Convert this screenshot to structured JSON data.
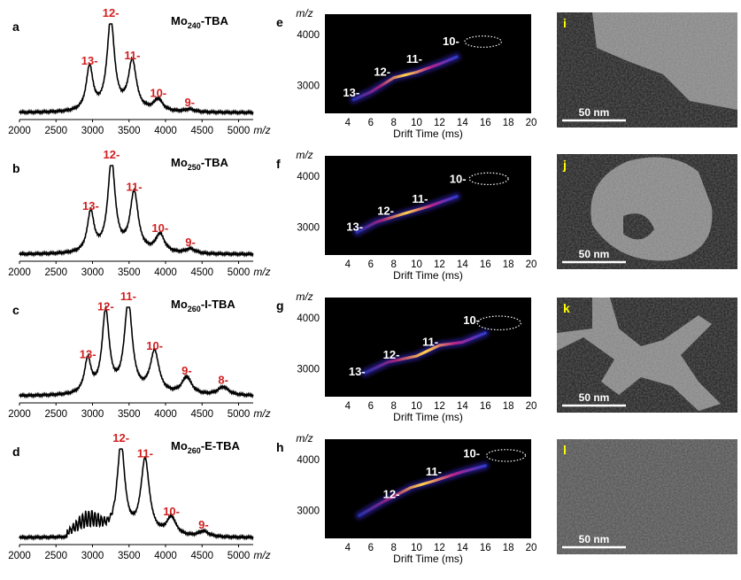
{
  "chart_data": {
    "ms_spectra": [
      {
        "type": "line",
        "panel_label": "a",
        "sample_label": {
          "prefix": "Mo",
          "subscript": "240",
          "suffix": "-TBA"
        },
        "x_ticks": [
          "2000",
          "2500",
          "3000",
          "3500",
          "4000",
          "4500",
          "5000"
        ],
        "x_unit": "m/z",
        "xlim": [
          2000,
          5200
        ],
        "peaks": [
          {
            "label": "13-",
            "x": 2960,
            "rel_intensity": 0.48
          },
          {
            "label": "12-",
            "x": 3250,
            "rel_intensity": 1.0
          },
          {
            "label": "11-",
            "x": 3545,
            "rel_intensity": 0.54
          },
          {
            "label": "10-",
            "x": 3900,
            "rel_intensity": 0.13
          },
          {
            "label": "9-",
            "x": 4330,
            "rel_intensity": 0.03
          }
        ]
      },
      {
        "type": "line",
        "panel_label": "b",
        "sample_label": {
          "prefix": "Mo",
          "subscript": "250",
          "suffix": "-TBA"
        },
        "x_ticks": [
          "2000",
          "2500",
          "3000",
          "3500",
          "4000",
          "4500",
          "5000"
        ],
        "x_unit": "m/z",
        "xlim": [
          2000,
          5200
        ],
        "peaks": [
          {
            "label": "13-",
            "x": 2975,
            "rel_intensity": 0.44
          },
          {
            "label": "12-",
            "x": 3260,
            "rel_intensity": 1.0
          },
          {
            "label": "11-",
            "x": 3570,
            "rel_intensity": 0.65
          },
          {
            "label": "10-",
            "x": 3925,
            "rel_intensity": 0.2
          },
          {
            "label": "9-",
            "x": 4340,
            "rel_intensity": 0.05
          }
        ]
      },
      {
        "type": "line",
        "panel_label": "c",
        "sample_label": {
          "prefix": "Mo",
          "subscript": "260",
          "suffix": "-I-TBA"
        },
        "x_ticks": [
          "2000",
          "2500",
          "3000",
          "3500",
          "4000",
          "4500",
          "5000"
        ],
        "x_unit": "m/z",
        "xlim": [
          2000,
          5200
        ],
        "peaks": [
          {
            "label": "13-",
            "x": 2935,
            "rel_intensity": 0.37
          },
          {
            "label": "12-",
            "x": 3180,
            "rel_intensity": 0.89
          },
          {
            "label": "11-",
            "x": 3490,
            "rel_intensity": 1.0
          },
          {
            "label": "10-",
            "x": 3850,
            "rel_intensity": 0.46
          },
          {
            "label": "9-",
            "x": 4290,
            "rel_intensity": 0.19
          },
          {
            "label": "8-",
            "x": 4790,
            "rel_intensity": 0.09
          }
        ]
      },
      {
        "type": "line",
        "panel_label": "d",
        "sample_label": {
          "prefix": "Mo",
          "subscript": "260",
          "suffix": "-E-TBA"
        },
        "x_ticks": [
          "2000",
          "2500",
          "3000",
          "3500",
          "4000",
          "4500",
          "5000"
        ],
        "x_unit": "m/z",
        "xlim": [
          2000,
          5200
        ],
        "peaks": [
          {
            "label": "12-",
            "x": 3390,
            "rel_intensity": 1.0
          },
          {
            "label": "11-",
            "x": 3720,
            "rel_intensity": 0.83
          },
          {
            "label": "10-",
            "x": 4080,
            "rel_intensity": 0.2
          },
          {
            "label": "9-",
            "x": 4520,
            "rel_intensity": 0.06
          }
        ],
        "broad_shoulder": [
          2600,
          3300
        ]
      }
    ],
    "drift_plots": [
      {
        "type": "heatmap",
        "panel_label": "e",
        "xlabel": "Drift Time (ms)",
        "ylabel": "m/z",
        "x_ticks": [
          "4",
          "6",
          "8",
          "10",
          "12",
          "14",
          "16",
          "18",
          "20"
        ],
        "y_ticks": [
          "3000",
          "4000"
        ],
        "xlim": [
          2,
          20
        ],
        "ylim": [
          2450,
          4400
        ],
        "trend": [
          [
            4.5,
            2720
          ],
          [
            6,
            2870
          ],
          [
            8,
            3150
          ],
          [
            10,
            3260
          ],
          [
            12,
            3420
          ],
          [
            13.5,
            3560
          ]
        ],
        "labels": [
          {
            "text": "13-",
            "x": 4.3,
            "y": 2780
          },
          {
            "text": "12-",
            "x": 7.0,
            "y": 3190
          },
          {
            "text": "11-",
            "x": 9.8,
            "y": 3440
          },
          {
            "text": "10-",
            "x": 13.0,
            "y": 3790
          }
        ],
        "ellipse": {
          "cx": 15.8,
          "cy": 3860,
          "rx": 1.6,
          "ry": 110
        }
      },
      {
        "type": "heatmap",
        "panel_label": "f",
        "xlabel": "Drift Time (ms)",
        "ylabel": "m/z",
        "x_ticks": [
          "4",
          "6",
          "8",
          "10",
          "12",
          "14",
          "16",
          "18",
          "20"
        ],
        "y_ticks": [
          "3000",
          "4000"
        ],
        "xlim": [
          2,
          20
        ],
        "ylim": [
          2450,
          4400
        ],
        "trend": [
          [
            4.8,
            2900
          ],
          [
            6.5,
            3100
          ],
          [
            9,
            3270
          ],
          [
            11,
            3400
          ],
          [
            13.5,
            3600
          ]
        ],
        "labels": [
          {
            "text": "13-",
            "x": 4.6,
            "y": 2930
          },
          {
            "text": "12-",
            "x": 7.3,
            "y": 3240
          },
          {
            "text": "11-",
            "x": 10.3,
            "y": 3480
          },
          {
            "text": "10-",
            "x": 13.6,
            "y": 3870
          }
        ],
        "ellipse": {
          "cx": 16.3,
          "cy": 3950,
          "rx": 1.7,
          "ry": 115
        }
      },
      {
        "type": "heatmap",
        "panel_label": "g",
        "xlabel": "Drift Time (ms)",
        "ylabel": "m/z",
        "x_ticks": [
          "4",
          "6",
          "8",
          "10",
          "12",
          "14",
          "16",
          "18",
          "20"
        ],
        "y_ticks": [
          "3000",
          "4000"
        ],
        "xlim": [
          2,
          20
        ],
        "ylim": [
          2450,
          4400
        ],
        "trend": [
          [
            5.5,
            2920
          ],
          [
            7.5,
            3130
          ],
          [
            10,
            3250
          ],
          [
            12,
            3460
          ],
          [
            14,
            3520
          ],
          [
            16,
            3700
          ]
        ],
        "labels": [
          {
            "text": "13-",
            "x": 4.8,
            "y": 2870
          },
          {
            "text": "12-",
            "x": 7.8,
            "y": 3200
          },
          {
            "text": "11-",
            "x": 11.2,
            "y": 3450
          },
          {
            "text": "10-",
            "x": 14.8,
            "y": 3880
          }
        ],
        "ellipse": {
          "cx": 17.2,
          "cy": 3900,
          "rx": 1.9,
          "ry": 135
        }
      },
      {
        "type": "heatmap",
        "panel_label": "h",
        "xlabel": "Drift Time (ms)",
        "ylabel": "m/z",
        "x_ticks": [
          "4",
          "6",
          "8",
          "10",
          "12",
          "14",
          "16",
          "18",
          "20"
        ],
        "y_ticks": [
          "3000",
          "4000"
        ],
        "xlim": [
          2,
          20
        ],
        "ylim": [
          2450,
          4400
        ],
        "trend": [
          [
            5,
            2900
          ],
          [
            7,
            3160
          ],
          [
            9.5,
            3450
          ],
          [
            11.5,
            3580
          ],
          [
            14,
            3760
          ],
          [
            16,
            3880
          ]
        ],
        "labels": [
          {
            "text": "12-",
            "x": 7.8,
            "y": 3240
          },
          {
            "text": "11-",
            "x": 11.5,
            "y": 3690
          },
          {
            "text": "10-",
            "x": 14.8,
            "y": 4040
          }
        ],
        "ellipse": {
          "cx": 17.8,
          "cy": 4080,
          "rx": 1.7,
          "ry": 115
        }
      }
    ],
    "micrographs": [
      {
        "panel_label": "i",
        "scale_bar": "50 nm",
        "morphology": "sheet"
      },
      {
        "panel_label": "j",
        "scale_bar": "50 nm",
        "morphology": "hollow-patch"
      },
      {
        "panel_label": "k",
        "scale_bar": "50 nm",
        "morphology": "branched"
      },
      {
        "panel_label": "l",
        "scale_bar": "50 nm",
        "morphology": "film"
      }
    ]
  }
}
